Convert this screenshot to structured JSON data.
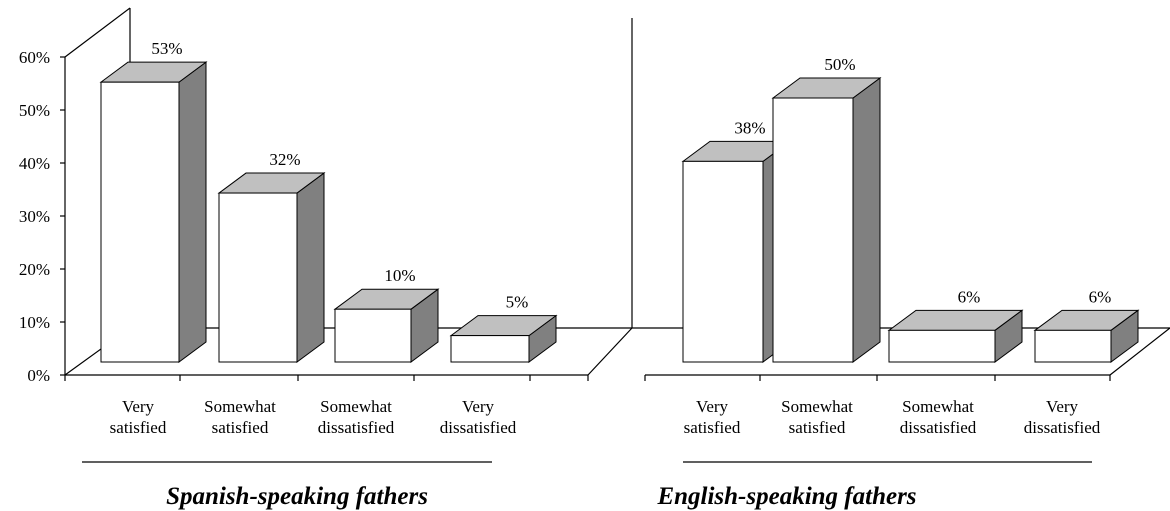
{
  "chart_data": {
    "type": "bar",
    "categories": [
      "Very satisfied",
      "Somewhat satisfied",
      "Somewhat dissatisfied",
      "Very dissatisfied"
    ],
    "series": [
      {
        "name": "Spanish-speaking fathers",
        "values": [
          53,
          32,
          10,
          5
        ],
        "value_labels": [
          "53%",
          "32%",
          "10%",
          "5%"
        ]
      },
      {
        "name": "English-speaking fathers",
        "values": [
          38,
          50,
          6,
          6
        ],
        "value_labels": [
          "38%",
          "50%",
          "6%",
          "6%"
        ]
      }
    ],
    "colors": {
      "front": "#ffffff",
      "top": "#c0c0c0",
      "side": "#808080"
    },
    "ylim": [
      0,
      60
    ],
    "yticks": [
      {
        "value": 0,
        "label": "0%"
      },
      {
        "value": 10,
        "label": "10%"
      },
      {
        "value": 20,
        "label": "20%"
      },
      {
        "value": 30,
        "label": "30%"
      },
      {
        "value": 40,
        "label": "40%"
      },
      {
        "value": 50,
        "label": "50%"
      },
      {
        "value": 60,
        "label": "60%"
      }
    ]
  }
}
